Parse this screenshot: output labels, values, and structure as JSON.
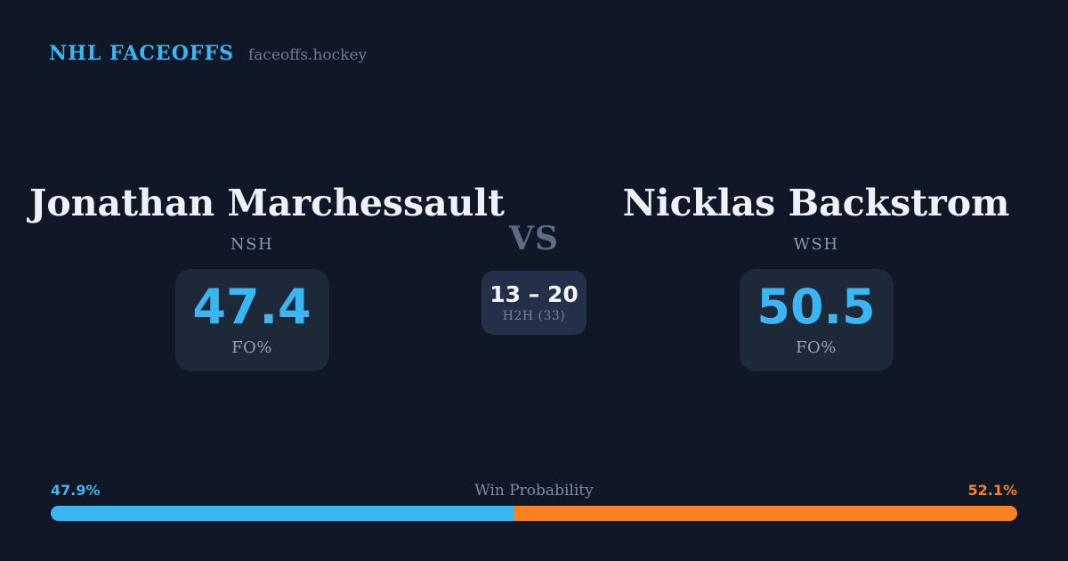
{
  "brand": {
    "title": "NHL FACEOFFS",
    "site": "faceoffs.hockey"
  },
  "matchup": {
    "vs_label": "VS",
    "h2h": {
      "score": "13 – 20",
      "label": "H2H (33)",
      "total_meetings": 33
    },
    "players": [
      {
        "name": "Jonathan Marchessault",
        "team": "NSH",
        "fo_pct": "47.4",
        "fo_label": "FO%"
      },
      {
        "name": "Nicklas Backstrom",
        "team": "WSH",
        "fo_pct": "50.5",
        "fo_label": "FO%"
      }
    ]
  },
  "win_probability": {
    "label": "Win Probability",
    "left_text": "47.9%",
    "right_text": "52.1%",
    "left_value": 47.9,
    "right_value": 52.1
  },
  "colors": {
    "background": "#101827",
    "card": "#1d2938",
    "h2h_card": "#24304a",
    "accent_blue": "#3ab6f2",
    "accent_orange": "#f8821f",
    "text_white": "#eef2f8",
    "text_muted": "#8b99b0"
  },
  "chart_data": {
    "type": "bar",
    "title": "Win Probability",
    "categories": [
      "Jonathan Marchessault (NSH)",
      "Nicklas Backstrom (WSH)"
    ],
    "values": [
      47.9,
      52.1
    ],
    "xlabel": "",
    "ylabel": "Win Probability (%)",
    "ylim": [
      0,
      100
    ],
    "legend_position": "none",
    "grid": false,
    "annotations": [
      "FO% NSH: 47.4",
      "FO% WSH: 50.5",
      "H2H: 13 – 20 of 33"
    ]
  }
}
